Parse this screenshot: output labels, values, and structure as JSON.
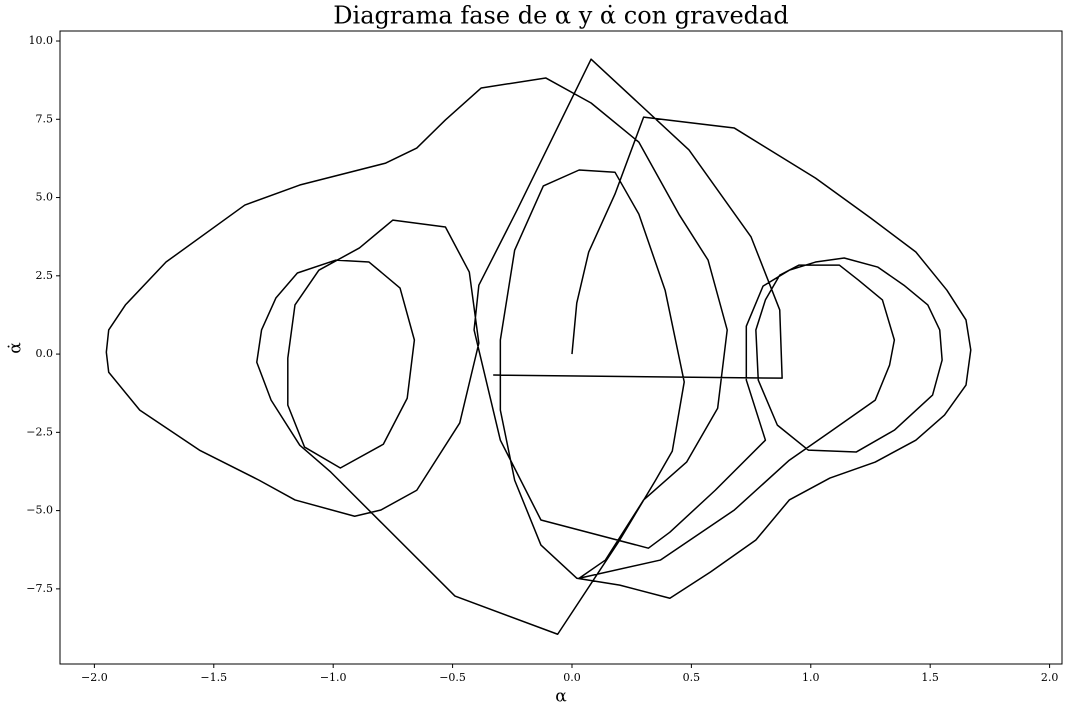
{
  "chart_data": {
    "type": "line",
    "title": "Diagrama fase de α y α̇ con gravedad",
    "x_label": "α",
    "y_label": "α̇",
    "color": "#000000",
    "x": [
      0.0,
      0.02,
      0.07,
      0.18,
      0.3,
      0.68,
      1.02,
      1.25,
      1.44,
      1.57,
      1.65,
      1.67,
      1.65,
      1.56,
      1.44,
      1.27,
      1.08,
      0.91,
      0.77,
      0.58,
      0.41,
      0.2,
      0.02,
      -0.13,
      -0.24,
      -0.3,
      -0.3,
      -0.24,
      -0.12,
      0.03,
      0.18,
      0.28,
      0.39,
      0.47,
      0.42,
      0.35,
      0.2,
      -0.06,
      -0.49,
      -0.8,
      -1.01,
      -1.14,
      -1.26,
      -1.32,
      -1.3,
      -1.24,
      -1.15,
      -0.99,
      -0.85,
      -0.72,
      -0.66,
      -0.69,
      -0.79,
      -0.97,
      -1.12,
      -1.19,
      -1.19,
      -1.16,
      -1.06,
      -0.89,
      -0.75,
      -0.53,
      -0.43,
      -0.39,
      -0.47,
      -0.65,
      -0.8,
      -0.91,
      -1.16,
      -1.31,
      -1.56,
      -1.81,
      -1.94,
      -1.95,
      -1.94,
      -1.87,
      -1.7,
      -1.37,
      -1.14,
      -0.78,
      -0.65,
      -0.53,
      -0.38,
      -0.11,
      0.08,
      0.28,
      0.45,
      0.57,
      0.65,
      0.61,
      0.48,
      0.3,
      0.14,
      0.03,
      0.37,
      0.68,
      0.91,
      1.08,
      1.27,
      1.33,
      1.35,
      1.3,
      1.2,
      1.12,
      0.95,
      0.87,
      0.81,
      0.77,
      0.78,
      0.86,
      0.99,
      1.19,
      1.35,
      1.51,
      1.55,
      1.54,
      1.49,
      1.39,
      1.28,
      1.14,
      1.02,
      0.91,
      0.8,
      0.73,
      0.73,
      0.81,
      0.6,
      0.41,
      0.32,
      -0.13,
      -0.3,
      -0.41,
      -0.39,
      -0.23,
      0.08,
      0.49,
      0.75,
      0.87,
      0.88,
      -0.33
    ],
    "values": [
      0.0,
      1.63,
      3.26,
      5.11,
      7.57,
      7.22,
      5.62,
      4.35,
      3.26,
      2.04,
      1.09,
      0.13,
      -0.99,
      -1.95,
      -2.75,
      -3.45,
      -3.96,
      -4.66,
      -5.94,
      -6.96,
      -7.8,
      -7.38,
      -7.16,
      -6.1,
      -4.03,
      -1.79,
      0.45,
      3.32,
      5.37,
      5.88,
      5.81,
      4.47,
      2.04,
      -0.89,
      -3.1,
      -4.03,
      -5.94,
      -8.95,
      -7.73,
      -5.37,
      -3.77,
      -2.91,
      -1.47,
      -0.26,
      0.77,
      1.79,
      2.59,
      3.0,
      2.94,
      2.11,
      0.45,
      -1.41,
      -2.88,
      -3.64,
      -2.97,
      -1.63,
      -0.13,
      1.57,
      2.68,
      3.39,
      4.28,
      4.06,
      2.62,
      0.35,
      -2.2,
      -4.35,
      -4.98,
      -5.18,
      -4.66,
      -4.03,
      -3.07,
      -1.79,
      -0.58,
      0.06,
      0.77,
      1.57,
      2.94,
      4.76,
      5.4,
      6.1,
      6.58,
      7.48,
      8.5,
      8.82,
      8.02,
      6.77,
      4.44,
      3.0,
      0.77,
      -1.73,
      -3.45,
      -4.66,
      -6.58,
      -7.16,
      -6.58,
      -4.98,
      -3.39,
      -2.49,
      -1.47,
      -0.35,
      0.45,
      1.73,
      2.36,
      2.84,
      2.84,
      2.52,
      1.73,
      0.77,
      -0.83,
      -2.27,
      -3.07,
      -3.13,
      -2.43,
      -1.31,
      -0.19,
      0.77,
      1.57,
      2.2,
      2.78,
      3.07,
      2.94,
      2.68,
      2.17,
      0.89,
      -0.83,
      -2.75,
      -4.35,
      -5.69,
      -6.2,
      -5.3,
      -2.75,
      0.77,
      2.2,
      4.6,
      9.42,
      6.52,
      3.74,
      1.41,
      -0.77,
      -0.67
    ],
    "xlim": [
      -2.144,
      2.052
    ],
    "ylim": [
      -9.9,
      10.32
    ],
    "xticks": [
      {
        "value": -2.0,
        "label": "−2.0"
      },
      {
        "value": -1.5,
        "label": "−1.5"
      },
      {
        "value": -1.0,
        "label": "−1.0"
      },
      {
        "value": -0.5,
        "label": "−0.5"
      },
      {
        "value": 0.0,
        "label": "0.0"
      },
      {
        "value": 0.5,
        "label": "0.5"
      },
      {
        "value": 1.0,
        "label": "1.0"
      },
      {
        "value": 1.5,
        "label": "1.5"
      },
      {
        "value": 2.0,
        "label": "2.0"
      }
    ],
    "yticks": [
      {
        "value": -7.5,
        "label": "−7.5"
      },
      {
        "value": -5.0,
        "label": "−5.0"
      },
      {
        "value": -2.5,
        "label": "−2.5"
      },
      {
        "value": 0.0,
        "label": "0.0"
      },
      2.5,
      {
        "value": 5.0,
        "label": "5.0"
      },
      7.5,
      {
        "value": 10.0,
        "label": "10.0"
      }
    ]
  }
}
